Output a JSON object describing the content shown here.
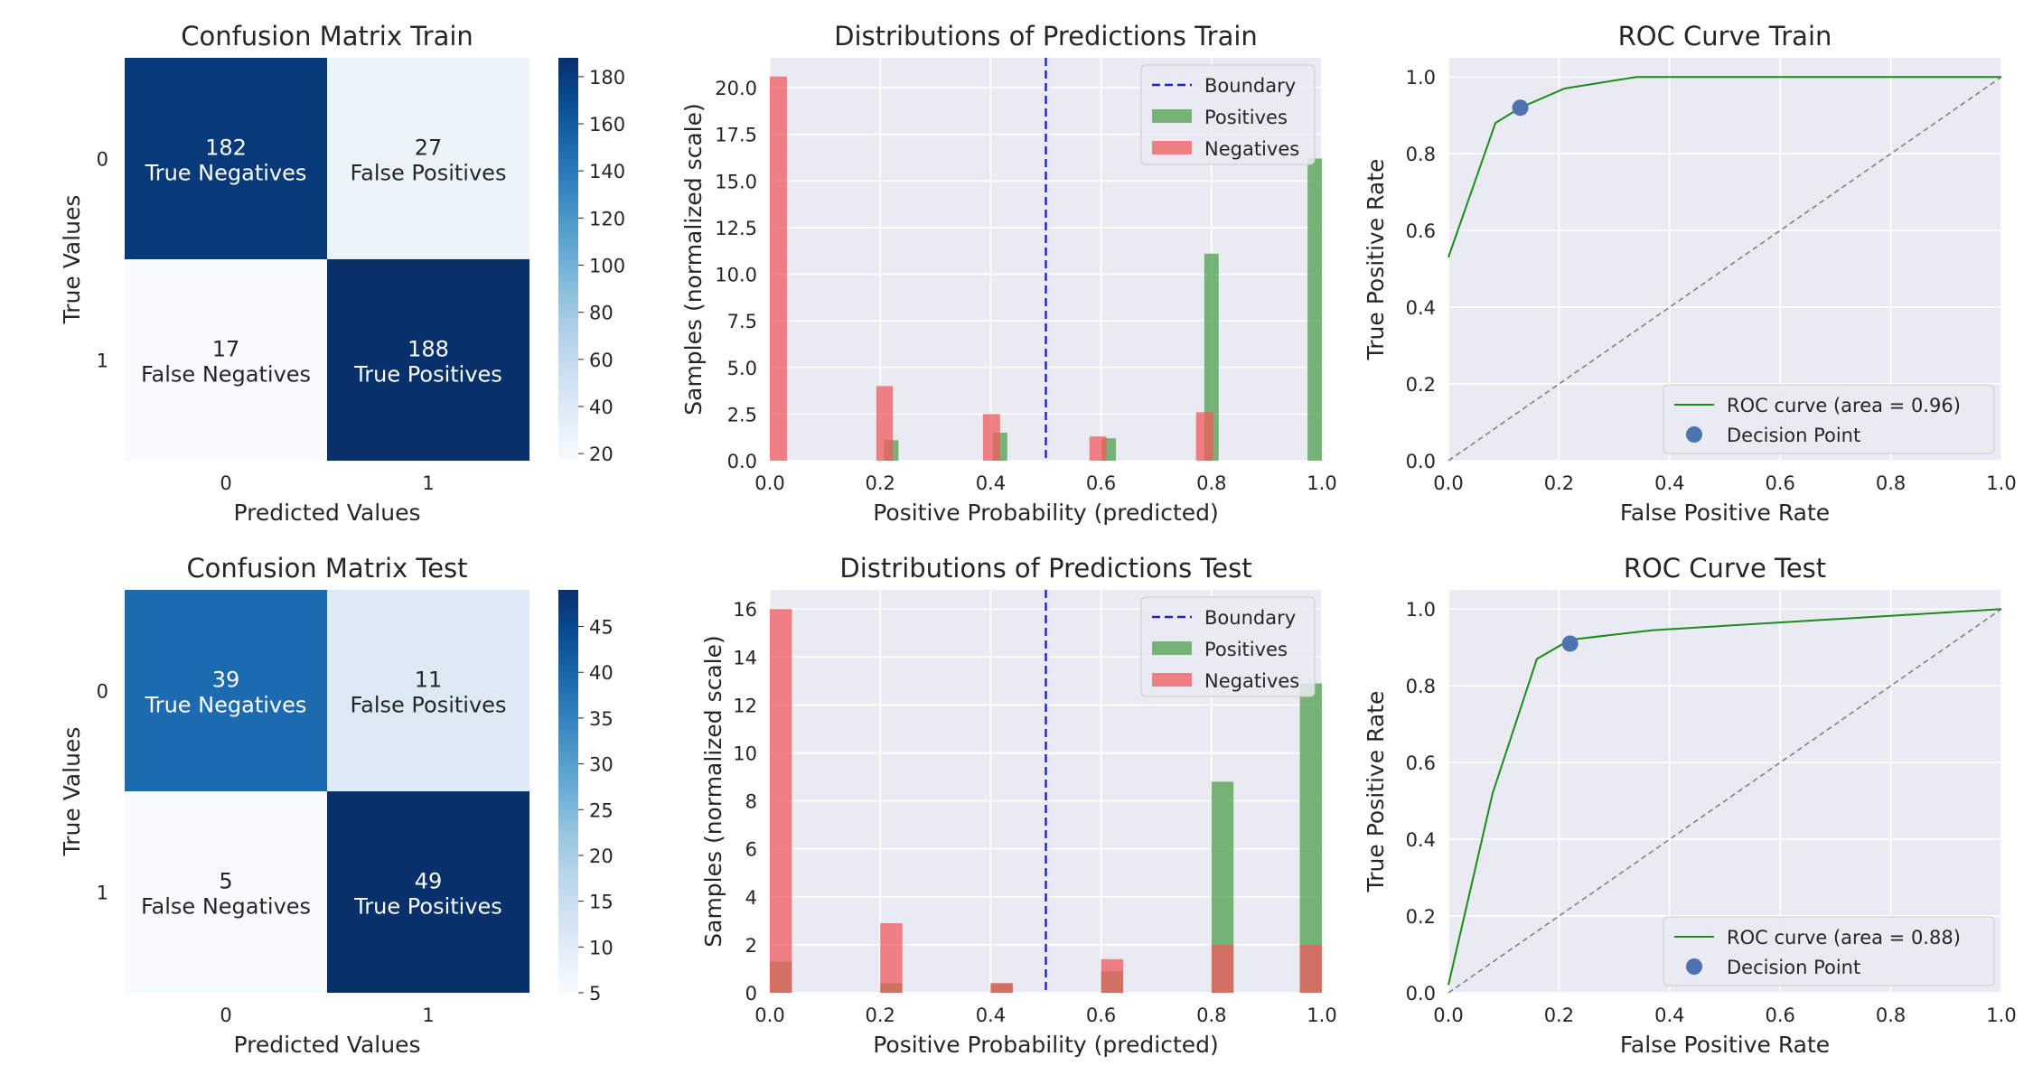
{
  "chart_data": [
    {
      "type": "heatmap",
      "title": "Confusion Matrix Train",
      "xlabel": "Predicted Values",
      "ylabel": "True Values",
      "x_ticks": [
        "0",
        "1"
      ],
      "y_ticks": [
        "0",
        "1"
      ],
      "cells": [
        {
          "row": 0,
          "col": 0,
          "value": 182,
          "label": "True Negatives"
        },
        {
          "row": 0,
          "col": 1,
          "value": 27,
          "label": "False Positives"
        },
        {
          "row": 1,
          "col": 0,
          "value": 17,
          "label": "False Negatives"
        },
        {
          "row": 1,
          "col": 1,
          "value": 188,
          "label": "True Positives"
        }
      ],
      "colorbar": {
        "min": 17,
        "max": 188,
        "ticks": [
          20,
          40,
          60,
          80,
          100,
          120,
          140,
          160,
          180
        ]
      },
      "colormap": "Blues"
    },
    {
      "type": "bar",
      "title": "Distributions of Predictions Train",
      "xlabel": "Positive Probability (predicted)",
      "ylabel": "Samples (normalized scale)",
      "xlim": [
        0,
        1
      ],
      "ylim": [
        0,
        21.6
      ],
      "x_ticks": [
        0.0,
        0.2,
        0.4,
        0.6,
        0.8,
        1.0
      ],
      "y_ticks": [
        0.0,
        2.5,
        5.0,
        7.5,
        10.0,
        12.5,
        15.0,
        17.5,
        20.0
      ],
      "boundary": 0.5,
      "grid": true,
      "legend_position": "top-right",
      "legend": [
        "Boundary",
        "Positives",
        "Negatives"
      ],
      "series": [
        {
          "name": "Positives",
          "color": "#4c9f4c",
          "bars": [
            {
              "x0": 0.207,
              "x1": 0.233,
              "y": 1.1
            },
            {
              "x0": 0.404,
              "x1": 0.43,
              "y": 1.5
            },
            {
              "x0": 0.601,
              "x1": 0.627,
              "y": 1.2
            },
            {
              "x0": 0.787,
              "x1": 0.813,
              "y": 11.1
            },
            {
              "x0": 0.974,
              "x1": 1.0,
              "y": 16.2
            }
          ]
        },
        {
          "name": "Negatives",
          "color": "#f0595e",
          "bars": [
            {
              "x0": 0.0,
              "x1": 0.031,
              "y": 20.6
            },
            {
              "x0": 0.193,
              "x1": 0.223,
              "y": 4.0
            },
            {
              "x0": 0.386,
              "x1": 0.417,
              "y": 2.5
            },
            {
              "x0": 0.579,
              "x1": 0.61,
              "y": 1.3
            },
            {
              "x0": 0.772,
              "x1": 0.803,
              "y": 2.6
            }
          ]
        }
      ]
    },
    {
      "type": "line",
      "title": "ROC Curve Train",
      "xlabel": "False Positive Rate",
      "ylabel": "True Positive Rate",
      "xlim": [
        0,
        1
      ],
      "ylim": [
        0,
        1.05
      ],
      "x_ticks": [
        0.0,
        0.2,
        0.4,
        0.6,
        0.8,
        1.0
      ],
      "y_ticks": [
        0.0,
        0.2,
        0.4,
        0.6,
        0.8,
        1.0
      ],
      "grid": true,
      "legend_position": "bottom-right",
      "legend": [
        "ROC curve (area = 0.96)",
        "Decision Point"
      ],
      "series": [
        {
          "name": "ROC curve (area = 0.96)",
          "color": "#1a8c1a",
          "x": [
            0.0,
            0.085,
            0.13,
            0.21,
            0.34,
            1.0
          ],
          "y": [
            0.53,
            0.88,
            0.92,
            0.97,
            1.0,
            1.0
          ]
        },
        {
          "name": "Decision Point",
          "color": "#4c72b0",
          "x": [
            0.13
          ],
          "y": [
            0.92
          ]
        }
      ],
      "diagonal": {
        "x": [
          0,
          1
        ],
        "y": [
          0,
          1
        ],
        "color": "#808080"
      }
    },
    {
      "type": "heatmap",
      "title": "Confusion Matrix Test",
      "xlabel": "Predicted Values",
      "ylabel": "True Values",
      "x_ticks": [
        "0",
        "1"
      ],
      "y_ticks": [
        "0",
        "1"
      ],
      "cells": [
        {
          "row": 0,
          "col": 0,
          "value": 39,
          "label": "True Negatives"
        },
        {
          "row": 0,
          "col": 1,
          "value": 11,
          "label": "False Positives"
        },
        {
          "row": 1,
          "col": 0,
          "value": 5,
          "label": "False Negatives"
        },
        {
          "row": 1,
          "col": 1,
          "value": 49,
          "label": "True Positives"
        }
      ],
      "colorbar": {
        "min": 5,
        "max": 49,
        "ticks": [
          5,
          10,
          15,
          20,
          25,
          30,
          35,
          40,
          45
        ]
      },
      "colormap": "Blues"
    },
    {
      "type": "bar",
      "title": "Distributions of Predictions Test",
      "xlabel": "Positive Probability (predicted)",
      "ylabel": "Samples (normalized scale)",
      "xlim": [
        0,
        1
      ],
      "ylim": [
        0,
        16.8
      ],
      "x_ticks": [
        0.0,
        0.2,
        0.4,
        0.6,
        0.8,
        1.0
      ],
      "y_ticks": [
        0,
        2,
        4,
        6,
        8,
        10,
        12,
        14,
        16
      ],
      "boundary": 0.5,
      "grid": true,
      "legend_position": "top-right",
      "legend": [
        "Boundary",
        "Positives",
        "Negatives"
      ],
      "series": [
        {
          "name": "Positives",
          "color": "#4c9f4c",
          "bars": [
            {
              "x0": 0.0,
              "x1": 0.04,
              "y": 1.3
            },
            {
              "x0": 0.2,
              "x1": 0.24,
              "y": 0.4
            },
            {
              "x0": 0.4,
              "x1": 0.44,
              "y": 0.4
            },
            {
              "x0": 0.6,
              "x1": 0.64,
              "y": 0.9
            },
            {
              "x0": 0.8,
              "x1": 0.84,
              "y": 8.8
            },
            {
              "x0": 0.96,
              "x1": 1.0,
              "y": 12.9
            }
          ]
        },
        {
          "name": "Negatives",
          "color": "#f0595e",
          "bars": [
            {
              "x0": 0.0,
              "x1": 0.04,
              "y": 16.0
            },
            {
              "x0": 0.2,
              "x1": 0.24,
              "y": 2.9
            },
            {
              "x0": 0.4,
              "x1": 0.44,
              "y": 0.4
            },
            {
              "x0": 0.6,
              "x1": 0.64,
              "y": 1.4
            },
            {
              "x0": 0.8,
              "x1": 0.84,
              "y": 2.0
            },
            {
              "x0": 0.96,
              "x1": 1.0,
              "y": 2.0
            }
          ]
        }
      ]
    },
    {
      "type": "line",
      "title": "ROC Curve Test",
      "xlabel": "False Positive Rate",
      "ylabel": "True Positive Rate",
      "xlim": [
        0,
        1
      ],
      "ylim": [
        0,
        1.05
      ],
      "x_ticks": [
        0.0,
        0.2,
        0.4,
        0.6,
        0.8,
        1.0
      ],
      "y_ticks": [
        0.0,
        0.2,
        0.4,
        0.6,
        0.8,
        1.0
      ],
      "grid": true,
      "legend_position": "bottom-right",
      "legend": [
        "ROC curve (area = 0.88)",
        "Decision Point"
      ],
      "series": [
        {
          "name": "ROC curve (area = 0.88)",
          "color": "#1a8c1a",
          "x": [
            0.0,
            0.08,
            0.16,
            0.22,
            0.37,
            1.0
          ],
          "y": [
            0.02,
            0.52,
            0.87,
            0.92,
            0.945,
            1.0
          ]
        },
        {
          "name": "Decision Point",
          "color": "#4c72b0",
          "x": [
            0.22
          ],
          "y": [
            0.91
          ]
        }
      ],
      "diagonal": {
        "x": [
          0,
          1
        ],
        "y": [
          0,
          1
        ],
        "color": "#808080"
      }
    }
  ]
}
